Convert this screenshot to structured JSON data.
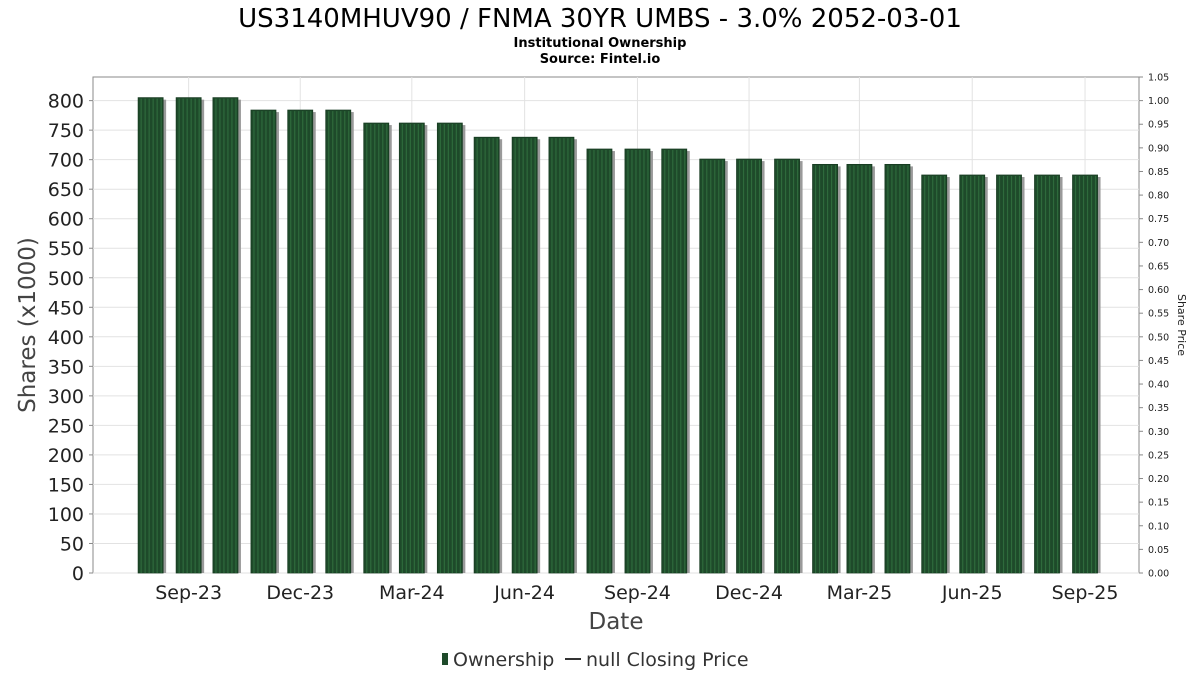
{
  "chart_data": {
    "type": "bar",
    "title": "US3140MHUV90 / FNMA 30YR UMBS - 3.0% 2052-03-01",
    "subtitle_1": "Institutional Ownership",
    "subtitle_2": "Source: Fintel.io",
    "xlabel": "Date",
    "ylabel": "Shares (x1000)",
    "y2label": "Share Price",
    "ylim": [
      0,
      840
    ],
    "y2lim": [
      0,
      1.05
    ],
    "yticks": [
      "0",
      "50",
      "100",
      "150",
      "200",
      "250",
      "300",
      "350",
      "400",
      "450",
      "500",
      "550",
      "600",
      "650",
      "700",
      "750",
      "800"
    ],
    "y2ticks": [
      "0.00",
      "0.05",
      "0.10",
      "0.15",
      "0.20",
      "0.25",
      "0.30",
      "0.35",
      "0.40",
      "0.45",
      "0.50",
      "0.55",
      "0.60",
      "0.65",
      "0.70",
      "0.75",
      "0.80",
      "0.85",
      "0.90",
      "0.95",
      "1.00",
      "1.05"
    ],
    "xticks": [
      "Sep-23",
      "Dec-23",
      "Mar-24",
      "Jun-24",
      "Sep-24",
      "Dec-24",
      "Mar-25",
      "Jun-25",
      "Sep-25"
    ],
    "xtick_dates": [
      "2023-09-01",
      "2023-12-01",
      "2024-03-01",
      "2024-06-01",
      "2024-09-01",
      "2024-12-01",
      "2025-03-01",
      "2025-06-01",
      "2025-09-01"
    ],
    "x_range": [
      "2023-06-15",
      "2025-10-15"
    ],
    "grid": true,
    "legend_position": "bottom-center",
    "series": [
      {
        "name": "Ownership",
        "color": "#1e4a2a",
        "x": [
          "2023-08-01",
          "2023-09-01",
          "2023-10-01",
          "2023-11-01",
          "2023-12-01",
          "2024-01-01",
          "2024-02-01",
          "2024-03-01",
          "2024-04-01",
          "2024-05-01",
          "2024-06-01",
          "2024-07-01",
          "2024-08-01",
          "2024-09-01",
          "2024-10-01",
          "2024-11-01",
          "2024-12-01",
          "2025-01-01",
          "2025-02-01",
          "2025-03-01",
          "2025-04-01",
          "2025-05-01",
          "2025-06-01",
          "2025-07-01",
          "2025-08-01",
          "2025-09-01"
        ],
        "values": [
          805,
          805,
          805,
          784,
          784,
          784,
          762,
          762,
          762,
          738,
          738,
          738,
          718,
          718,
          718,
          701,
          701,
          701,
          692,
          692,
          692,
          674,
          674,
          674,
          674,
          674
        ]
      },
      {
        "name": "null Closing Price",
        "color": "#333333",
        "values": []
      }
    ]
  }
}
